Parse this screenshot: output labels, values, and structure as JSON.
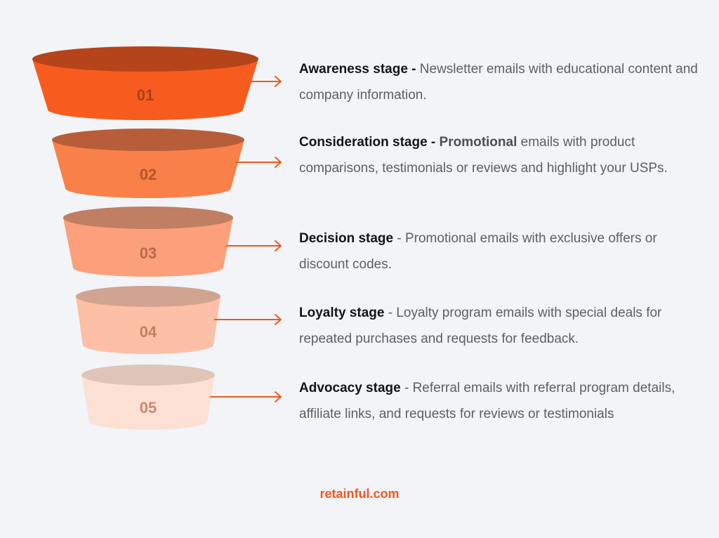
{
  "stages": [
    {
      "number": "01",
      "title": "Awareness stage -",
      "highlight": "",
      "description": " Newsletter emails with educational content and company information.",
      "color_top": "#b5441a",
      "color_body": "#f75c1e",
      "number_color": "#a8401a"
    },
    {
      "number": "02",
      "title": "Consideration stage -",
      "highlight": " Promotional",
      "description": " emails with product comparisons, testimonials or reviews and highlight your USPs.",
      "color_top": "#b75d3a",
      "color_body": "#f98048",
      "number_color": "#b3552f"
    },
    {
      "number": "03",
      "title": "Decision stage",
      "highlight": "",
      "description": " - Promotional emails with exclusive offers or discount codes.",
      "color_top": "#c07e63",
      "color_body": "#fba07b",
      "number_color": "#b6694c"
    },
    {
      "number": "04",
      "title": "Loyalty stage",
      "highlight": "",
      "description": " - Loyalty program emails with special deals for repeated purchases and requests for feedback.",
      "color_top": "#d0a491",
      "color_body": "#fdbfa5",
      "number_color": "#bf7f66"
    },
    {
      "number": "05",
      "title": "Advocacy stage",
      "highlight": "",
      "description": " - Referral emails with referral program details, affiliate links, and requests for reviews or testimonials",
      "color_top": "#dfc4b8",
      "color_body": "#fde0d4",
      "number_color": "#c78a72"
    }
  ],
  "arrow_color": "#f0581c",
  "footer": "retainful.com"
}
